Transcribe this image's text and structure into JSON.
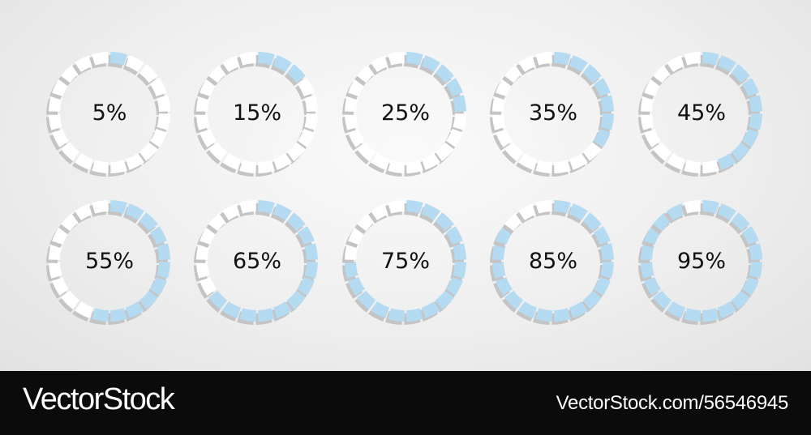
{
  "rings": [
    {
      "label": "5%",
      "value": 5
    },
    {
      "label": "15%",
      "value": 15
    },
    {
      "label": "25%",
      "value": 25
    },
    {
      "label": "35%",
      "value": 35
    },
    {
      "label": "45%",
      "value": 45
    },
    {
      "label": "55%",
      "value": 55
    },
    {
      "label": "65%",
      "value": 65
    },
    {
      "label": "75%",
      "value": 75
    },
    {
      "label": "85%",
      "value": 85
    },
    {
      "label": "95%",
      "value": 95
    }
  ],
  "segments_per_ring": 20,
  "colors": {
    "filled": "#b5dbf2",
    "empty": "#ffffff",
    "shadow": "#c4c4c4",
    "text": "#111111"
  },
  "footer": {
    "brand": "VectorStock",
    "stock_id": "VectorStock.com/56546945"
  }
}
